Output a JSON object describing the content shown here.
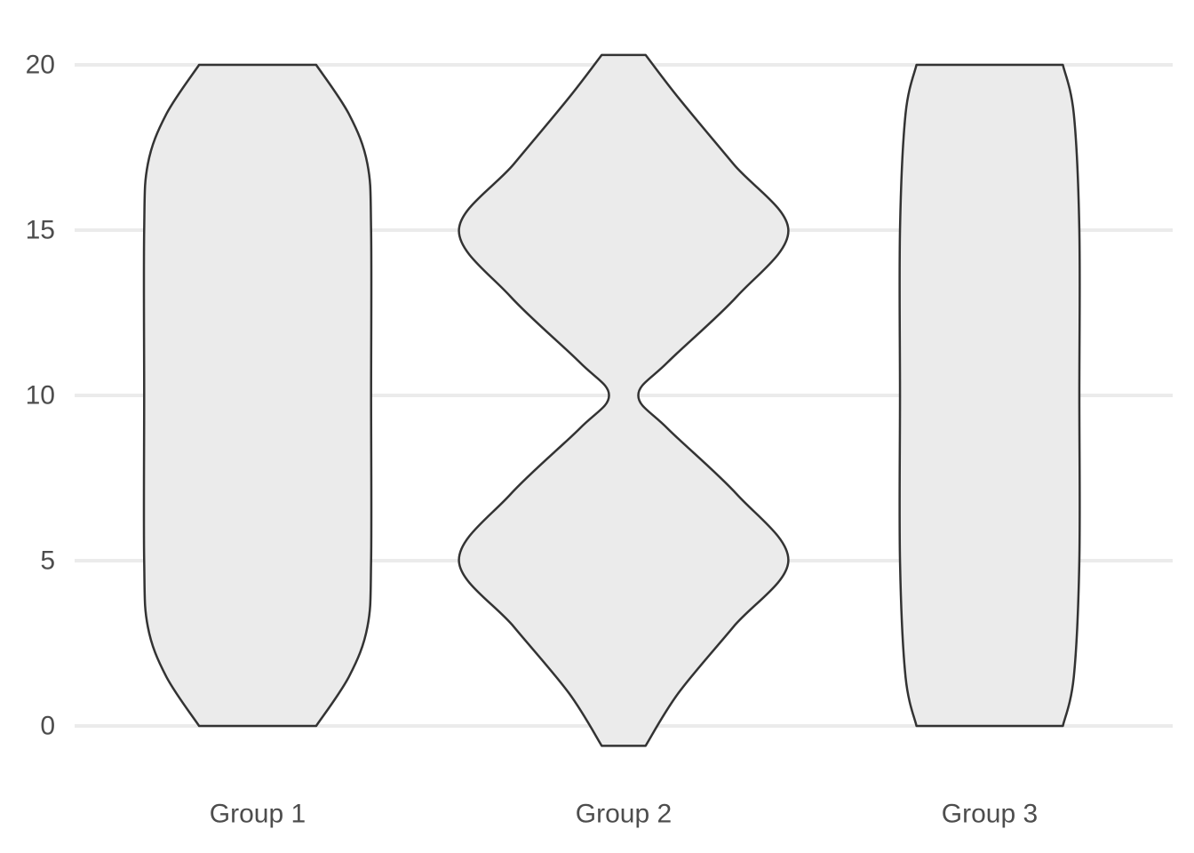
{
  "chart_data": {
    "type": "violin",
    "categories": [
      "Group 1",
      "Group 2",
      "Group 3"
    ],
    "y_ticks": [
      0,
      5,
      10,
      15,
      20
    ],
    "ylim": [
      -1.2,
      21.2
    ],
    "grid": "horizontal major",
    "series": [
      {
        "category": "Group 1",
        "range": [
          0,
          20
        ],
        "density_profile": [
          {
            "y": 0,
            "half_width": 0.16
          },
          {
            "y": 1.5,
            "half_width": 0.25
          },
          {
            "y": 3,
            "half_width": 0.3
          },
          {
            "y": 5,
            "half_width": 0.31
          },
          {
            "y": 10,
            "half_width": 0.31
          },
          {
            "y": 15,
            "half_width": 0.31
          },
          {
            "y": 17,
            "half_width": 0.3
          },
          {
            "y": 18.5,
            "half_width": 0.25
          },
          {
            "y": 20,
            "half_width": 0.16
          }
        ]
      },
      {
        "category": "Group 2",
        "range": [
          -0.6,
          20.3
        ],
        "density_profile": [
          {
            "y": -0.6,
            "half_width": 0.06
          },
          {
            "y": 1,
            "half_width": 0.15
          },
          {
            "y": 3,
            "half_width": 0.3
          },
          {
            "y": 5,
            "half_width": 0.45
          },
          {
            "y": 7,
            "half_width": 0.31
          },
          {
            "y": 9,
            "half_width": 0.12
          },
          {
            "y": 10,
            "half_width": 0.04
          },
          {
            "y": 11,
            "half_width": 0.12
          },
          {
            "y": 13,
            "half_width": 0.31
          },
          {
            "y": 15,
            "half_width": 0.45
          },
          {
            "y": 17,
            "half_width": 0.3
          },
          {
            "y": 19,
            "half_width": 0.15
          },
          {
            "y": 20.3,
            "half_width": 0.06
          }
        ]
      },
      {
        "category": "Group 3",
        "range": [
          0,
          20
        ],
        "density_profile": [
          {
            "y": 0,
            "half_width": 0.2
          },
          {
            "y": 1.5,
            "half_width": 0.23
          },
          {
            "y": 5,
            "half_width": 0.245
          },
          {
            "y": 10,
            "half_width": 0.245
          },
          {
            "y": 15,
            "half_width": 0.245
          },
          {
            "y": 18.5,
            "half_width": 0.23
          },
          {
            "y": 20,
            "half_width": 0.2
          }
        ]
      }
    ],
    "colors": {
      "fill": "#ebebeb",
      "outline": "#333333",
      "grid": "#ebebeb",
      "text": "#4d4d4d"
    }
  }
}
